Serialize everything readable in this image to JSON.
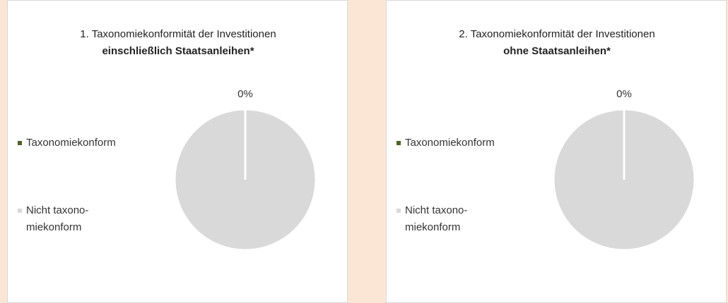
{
  "chart_data": [
    {
      "type": "pie",
      "title": "1. Taxonomiekonformität der Investitionen",
      "subtitle": "einschließlich Staatsanleihen*",
      "categories": [
        "Taxonomiekonform",
        "Nicht taxono-\nmiekonform"
      ],
      "values": [
        0,
        100
      ],
      "value_labels": [
        "0%",
        null
      ],
      "colors": [
        "#4f6228",
        "#d9d9d9"
      ]
    },
    {
      "type": "pie",
      "title": "2. Taxonomiekonformität der Investitionen",
      "subtitle": "ohne Staatsanleihen*",
      "categories": [
        "Taxonomiekonform",
        "Nicht taxono-\nmiekonform"
      ],
      "values": [
        0,
        100
      ],
      "value_labels": [
        "0%",
        null
      ],
      "colors": [
        "#4f6228",
        "#d9d9d9"
      ]
    }
  ]
}
